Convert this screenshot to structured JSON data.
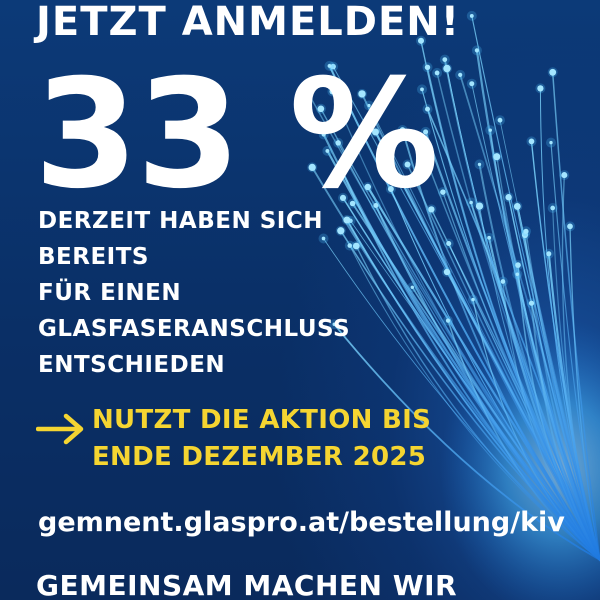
{
  "headline": "JETZT ANMELDEN!",
  "statistic": "33 %",
  "description_lines": [
    "DERZEIT HABEN SICH",
    "BEREITS",
    "FÜR EINEN",
    "GLASFASERANSCHLUSS",
    "ENTSCHIEDEN"
  ],
  "cta": {
    "arrow_icon": "arrow-right-icon",
    "lines": [
      "NUTZT DIE AKTION BIS",
      "ENDE DEZEMBER 2025"
    ]
  },
  "url": "gemnent.glaspro.at/bestellung/kiv",
  "footer": "GEMEINSAM MACHEN WIR",
  "colors": {
    "background": "#0b3068",
    "text": "#ffffff",
    "accent": "#f5d531",
    "fiber_glow": "#4fc3ff"
  }
}
